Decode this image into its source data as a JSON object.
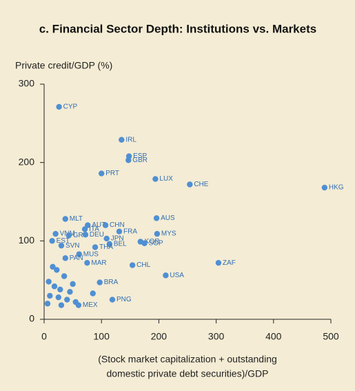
{
  "chart_data": {
    "type": "scatter",
    "title": "c. Financial Sector Depth: Institutions vs. Markets",
    "ylabel": "Private credit/GDP (%)",
    "xlabel": [
      "(Stock market capitalization + outstanding",
      "domestic private debt securities)/GDP"
    ],
    "color": "#4f8fd3",
    "xlim": [
      0,
      500
    ],
    "xticks": [
      0,
      100,
      200,
      300,
      400,
      500
    ],
    "ylim": [
      0,
      300
    ],
    "yticks": [
      0,
      100,
      200,
      300
    ],
    "labels": [
      "CYP",
      "IRL",
      "ESP",
      "GBR",
      "PRT",
      "LUX",
      "CHE",
      "HKG",
      "AUS",
      "MLT",
      "AUT",
      "CHN",
      "ITA",
      "FRA",
      "MYS",
      "VNM",
      "GRC",
      "DEU",
      "JPN",
      "EST",
      "KOR",
      "SGP",
      "SVN",
      "BEL",
      "THA",
      "MUS",
      "PAN",
      "MAR",
      "ZAF",
      "CHL",
      "USA",
      "PNG",
      "BRA",
      "MEX",
      null,
      null,
      null,
      null,
      null,
      null,
      null,
      null,
      null,
      null,
      null,
      null,
      null,
      null,
      null
    ],
    "x": [
      26,
      135,
      148,
      147,
      100,
      194,
      254,
      489,
      196,
      37,
      76,
      107,
      71,
      131,
      197,
      20,
      43,
      72,
      109,
      14,
      168,
      175,
      30,
      114,
      89,
      61,
      37,
      75,
      304,
      154,
      212,
      119,
      97,
      60,
      15,
      22,
      35,
      8,
      18,
      28,
      45,
      10,
      25,
      40,
      55,
      6,
      30,
      85,
      50
    ],
    "values": [
      271,
      229,
      208,
      203,
      186,
      179,
      172,
      168,
      129,
      128,
      120,
      120,
      115,
      112,
      109,
      109,
      107,
      108,
      103,
      100,
      99,
      97,
      94,
      96,
      92,
      83,
      78,
      72,
      72,
      69,
      56,
      25,
      47,
      18,
      67,
      63,
      55,
      48,
      42,
      38,
      35,
      30,
      28,
      25,
      22,
      20,
      18,
      33,
      45
    ]
  }
}
